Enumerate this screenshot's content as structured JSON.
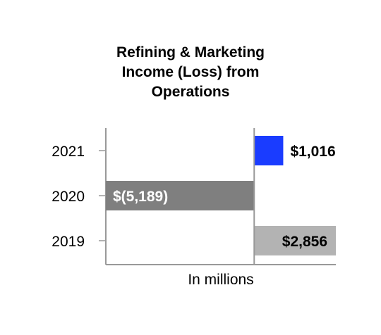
{
  "chart_data": {
    "type": "bar",
    "orientation": "horizontal",
    "title_lines": [
      "Refining & Marketing",
      "Income (Loss) from",
      "Operations"
    ],
    "xlabel": "In millions",
    "ylabel": "",
    "categories": [
      "2021",
      "2020",
      "2019"
    ],
    "values": [
      1016,
      -5189,
      2856
    ],
    "data_labels": [
      "$1,016",
      "$(5,189)",
      "$2,856"
    ],
    "bar_colors": [
      "#1a3cff",
      "#7f7f7f",
      "#b3b3b3"
    ],
    "label_colors": [
      "#000000",
      "#ffffff",
      "#000000"
    ],
    "xlim": [
      -5189,
      2856
    ],
    "grid": false,
    "legend": "none"
  }
}
